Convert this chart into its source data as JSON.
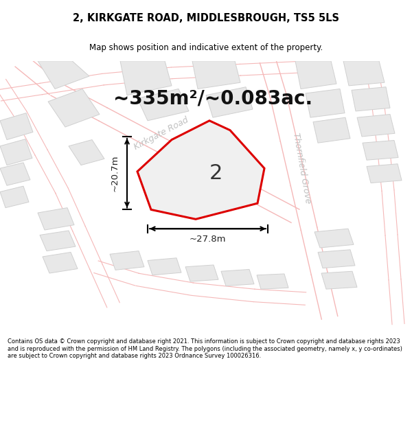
{
  "title": "2, KIRKGATE ROAD, MIDDLESBROUGH, TS5 5LS",
  "subtitle": "Map shows position and indicative extent of the property.",
  "area_text": "~335m²/~0.083ac.",
  "label": "2",
  "dim_width": "~27.8m",
  "dim_height": "~20.7m",
  "footer": "Contains OS data © Crown copyright and database right 2021. This information is subject to Crown copyright and database rights 2023 and is reproduced with the permission of HM Land Registry. The polygons (including the associated geometry, namely x, y co-ordinates) are subject to Crown copyright and database rights 2023 Ordnance Survey 100026316.",
  "bg": "#ffffff",
  "map_bg": "#ffffff",
  "road_fill": "#ffffff",
  "road_stroke": "#f5b8b8",
  "building_fill": "#e8e8e8",
  "building_stroke": "#d0d0d0",
  "plot_fill": "#f0f0f0",
  "plot_stroke": "#dd0000",
  "road_label_color": "#c0c0c0",
  "dim_color": "#222222",
  "figsize": [
    6.0,
    6.25
  ],
  "dpi": 100,
  "title_fontsize": 10.5,
  "subtitle_fontsize": 8.5,
  "area_fontsize": 20,
  "label_fontsize": 22,
  "dim_fontsize": 9.5,
  "road_label_fontsize": 9,
  "footer_fontsize": 6.0
}
